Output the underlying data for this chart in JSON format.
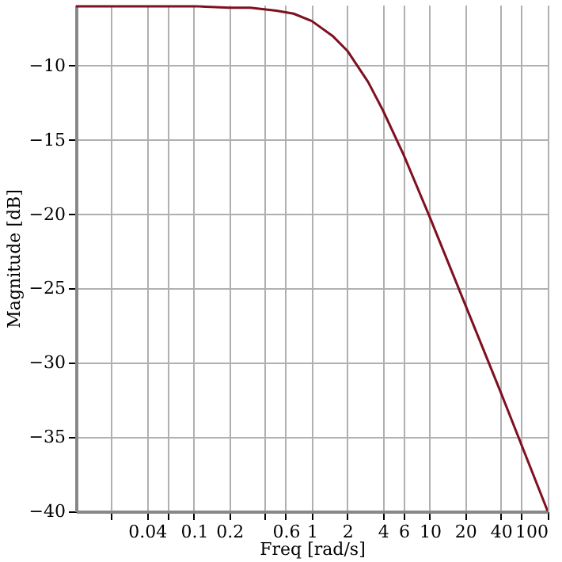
{
  "chart_data": {
    "type": "line",
    "xlabel": "Freq [rad/s]",
    "ylabel": "Magnitude [dB]",
    "x": [
      0.01,
      0.03,
      0.1,
      0.2,
      0.3,
      0.5,
      0.7,
      1,
      1.5,
      2,
      3,
      4,
      6,
      10,
      20,
      40,
      100
    ],
    "series": [
      {
        "color": "#7f1020",
        "values": [
          -6.0,
          -6.0,
          -6.0,
          -6.1,
          -6.1,
          -6.3,
          -6.5,
          -7.0,
          -8.0,
          -9.0,
          -11.1,
          -13.0,
          -16.0,
          -20.2,
          -26.1,
          -32.0,
          -40.0
        ]
      }
    ],
    "log": "x",
    "xlim": [
      0.01,
      100
    ],
    "ylim": [
      -40,
      -5.9
    ],
    "xticks": [
      {
        "value": 0.02,
        "label": null
      },
      0.04,
      {
        "value": 0.06,
        "label": null
      },
      0.1,
      0.2,
      {
        "value": 0.4,
        "label": null
      },
      0.6,
      1,
      2,
      4,
      6,
      10,
      20,
      40,
      {
        "value": 60,
        "label": null
      },
      100
    ],
    "yticks": [
      {
        "value": -40,
        "label": "−40"
      },
      {
        "value": -35,
        "label": "−35"
      },
      {
        "value": -30,
        "label": "−30"
      },
      {
        "value": -25,
        "label": "−25"
      },
      {
        "value": -20,
        "label": "−20"
      },
      {
        "value": -15,
        "label": "−15"
      },
      {
        "value": -10,
        "label": "−10"
      }
    ],
    "grid": true,
    "marker": "none",
    "line_style": "solid"
  }
}
